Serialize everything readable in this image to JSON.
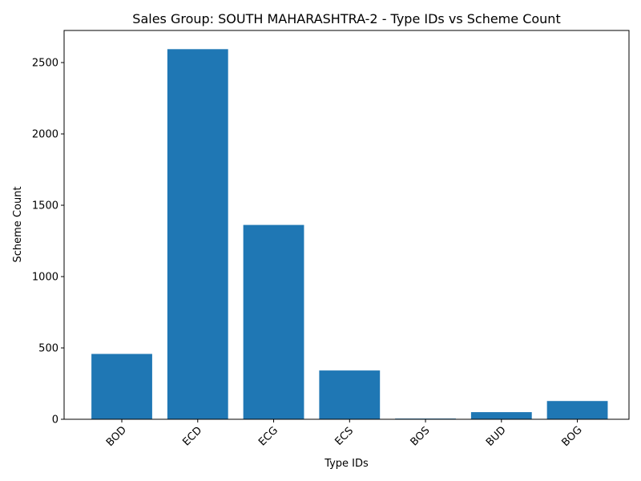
{
  "chart_data": {
    "type": "bar",
    "title": "Sales Group: SOUTH MAHARASHTRA-2 - Type IDs vs Scheme Count",
    "xlabel": "Type IDs",
    "ylabel": "Scheme Count",
    "categories": [
      "BOD",
      "ECD",
      "ECG",
      "ECS",
      "BOS",
      "BUD",
      "BOG"
    ],
    "values": [
      458,
      2594,
      1362,
      342,
      5,
      50,
      128
    ],
    "ylim": [
      0,
      2725
    ],
    "yticks": [
      0,
      500,
      1000,
      1500,
      2000,
      2500
    ],
    "bar_color": "#1f77b4",
    "grid": false,
    "legend": "none"
  }
}
